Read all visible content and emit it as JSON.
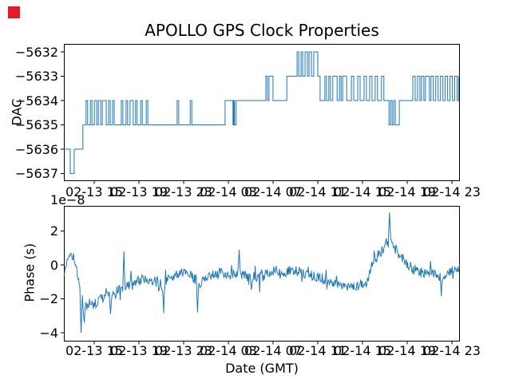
{
  "window": {
    "marker_color": "#e11d25"
  },
  "figure": {
    "title": "APOLLO GPS Clock Properties",
    "xlabel": "Date (GMT)",
    "background": "#ffffff",
    "line_color": "#1f77b4",
    "top_ylabel": "DAC",
    "bottom_ylabel": "Phase (s)",
    "offset_text": "1e−8"
  },
  "chart_data": [
    {
      "type": "line",
      "style": "step-post",
      "title": "APOLLO GPS Clock Properties",
      "ylabel": "DAC",
      "xlabel": "",
      "legend": "none",
      "grid": false,
      "ylim": [
        -5637.3,
        -5631.7
      ],
      "y_tick_values": [
        -5632,
        -5633,
        -5634,
        -5635,
        -5636,
        -5637
      ],
      "y_tick_labels": [
        "−5632",
        "−5633",
        "−5634",
        "−5635",
        "−5636",
        "−5637"
      ],
      "x_tick_labels": [
        "02-13 15",
        "02-13 19",
        "02-13 23",
        "02-14 03",
        "02-14 07",
        "02-14 11",
        "02-14 15",
        "02-14 19",
        "02-14 23"
      ],
      "steps_x_is_fraction_of_axis": true,
      "steps": [
        [
          0.0,
          -5636
        ],
        [
          0.016,
          -5637
        ],
        [
          0.026,
          -5636
        ],
        [
          0.048,
          -5635
        ],
        [
          0.056,
          -5634
        ],
        [
          0.06,
          -5635
        ],
        [
          0.067,
          -5634
        ],
        [
          0.071,
          -5635
        ],
        [
          0.077,
          -5634
        ],
        [
          0.083,
          -5635
        ],
        [
          0.087,
          -5634
        ],
        [
          0.093,
          -5635
        ],
        [
          0.097,
          -5634
        ],
        [
          0.107,
          -5635
        ],
        [
          0.113,
          -5634
        ],
        [
          0.117,
          -5635
        ],
        [
          0.123,
          -5634
        ],
        [
          0.127,
          -5635
        ],
        [
          0.145,
          -5634
        ],
        [
          0.149,
          -5635
        ],
        [
          0.157,
          -5634
        ],
        [
          0.161,
          -5635
        ],
        [
          0.167,
          -5634
        ],
        [
          0.175,
          -5635
        ],
        [
          0.181,
          -5634
        ],
        [
          0.185,
          -5635
        ],
        [
          0.194,
          -5634
        ],
        [
          0.198,
          -5635
        ],
        [
          0.208,
          -5634
        ],
        [
          0.212,
          -5635
        ],
        [
          0.286,
          -5634
        ],
        [
          0.29,
          -5635
        ],
        [
          0.319,
          -5634
        ],
        [
          0.323,
          -5635
        ],
        [
          0.407,
          -5634
        ],
        [
          0.427,
          -5635
        ],
        [
          0.429,
          -5634
        ],
        [
          0.431,
          -5635
        ],
        [
          0.435,
          -5634
        ],
        [
          0.51,
          -5633
        ],
        [
          0.514,
          -5634
        ],
        [
          0.518,
          -5633
        ],
        [
          0.528,
          -5634
        ],
        [
          0.563,
          -5633
        ],
        [
          0.589,
          -5632
        ],
        [
          0.593,
          -5633
        ],
        [
          0.599,
          -5632
        ],
        [
          0.603,
          -5633
        ],
        [
          0.609,
          -5632
        ],
        [
          0.615,
          -5633
        ],
        [
          0.619,
          -5632
        ],
        [
          0.625,
          -5633
        ],
        [
          0.631,
          -5632
        ],
        [
          0.641,
          -5633
        ],
        [
          0.647,
          -5634
        ],
        [
          0.659,
          -5633
        ],
        [
          0.663,
          -5634
        ],
        [
          0.669,
          -5633
        ],
        [
          0.673,
          -5634
        ],
        [
          0.679,
          -5633
        ],
        [
          0.69,
          -5634
        ],
        [
          0.696,
          -5633
        ],
        [
          0.7,
          -5634
        ],
        [
          0.704,
          -5633
        ],
        [
          0.714,
          -5634
        ],
        [
          0.726,
          -5633
        ],
        [
          0.732,
          -5634
        ],
        [
          0.742,
          -5633
        ],
        [
          0.748,
          -5634
        ],
        [
          0.758,
          -5633
        ],
        [
          0.764,
          -5634
        ],
        [
          0.772,
          -5633
        ],
        [
          0.778,
          -5634
        ],
        [
          0.786,
          -5633
        ],
        [
          0.792,
          -5634
        ],
        [
          0.802,
          -5633
        ],
        [
          0.808,
          -5634
        ],
        [
          0.821,
          -5635
        ],
        [
          0.825,
          -5634
        ],
        [
          0.829,
          -5635
        ],
        [
          0.833,
          -5634
        ],
        [
          0.837,
          -5635
        ],
        [
          0.847,
          -5634
        ],
        [
          0.881,
          -5633
        ],
        [
          0.887,
          -5634
        ],
        [
          0.893,
          -5633
        ],
        [
          0.899,
          -5634
        ],
        [
          0.903,
          -5633
        ],
        [
          0.909,
          -5634
        ],
        [
          0.913,
          -5633
        ],
        [
          0.923,
          -5634
        ],
        [
          0.927,
          -5633
        ],
        [
          0.933,
          -5634
        ],
        [
          0.939,
          -5633
        ],
        [
          0.945,
          -5634
        ],
        [
          0.951,
          -5633
        ],
        [
          0.957,
          -5634
        ],
        [
          0.963,
          -5633
        ],
        [
          0.969,
          -5634
        ],
        [
          0.975,
          -5633
        ],
        [
          0.981,
          -5634
        ],
        [
          0.987,
          -5633
        ],
        [
          0.993,
          -5634
        ],
        [
          0.997,
          -5633
        ]
      ]
    },
    {
      "type": "line",
      "style": "noisy",
      "ylabel": "Phase (s)",
      "xlabel": "Date (GMT)",
      "y_offset_text": "1e−8",
      "legend": "none",
      "grid": false,
      "ylim": [
        -4.4,
        3.5
      ],
      "y_tick_values": [
        2,
        0,
        -2,
        -4
      ],
      "y_tick_labels": [
        "2",
        "0",
        "−2",
        "−4"
      ],
      "x_tick_labels": [
        "02-13 15",
        "02-13 19",
        "02-13 23",
        "02-14 03",
        "02-14 07",
        "02-14 11",
        "02-14 15",
        "02-14 19",
        "02-14 23"
      ],
      "noise": {
        "seed": 9,
        "n": 620,
        "clamp": [
          -4.3,
          3.4
        ],
        "anchors": [
          [
            0.0,
            -0.55,
            0.25
          ],
          [
            0.01,
            0.45,
            0.35
          ],
          [
            0.02,
            0.55,
            0.35
          ],
          [
            0.03,
            0.05,
            0.25
          ],
          [
            0.04,
            -1.4,
            0.6
          ],
          [
            0.05,
            -2.45,
            0.55
          ],
          [
            0.075,
            -2.3,
            0.5
          ],
          [
            0.1,
            -1.95,
            0.5
          ],
          [
            0.13,
            -1.55,
            0.45
          ],
          [
            0.16,
            -1.25,
            0.45
          ],
          [
            0.19,
            -0.85,
            0.5
          ],
          [
            0.22,
            -0.95,
            0.5
          ],
          [
            0.25,
            -1.3,
            0.7
          ],
          [
            0.265,
            -0.8,
            0.45
          ],
          [
            0.295,
            -0.45,
            0.4
          ],
          [
            0.32,
            -0.6,
            0.45
          ],
          [
            0.34,
            -1.1,
            0.6
          ],
          [
            0.365,
            -0.7,
            0.45
          ],
          [
            0.39,
            -0.45,
            0.45
          ],
          [
            0.42,
            -0.65,
            0.5
          ],
          [
            0.445,
            -0.45,
            0.5
          ],
          [
            0.47,
            -0.9,
            0.55
          ],
          [
            0.5,
            -0.7,
            0.5
          ],
          [
            0.53,
            -0.35,
            0.45
          ],
          [
            0.56,
            -0.4,
            0.5
          ],
          [
            0.59,
            -0.3,
            0.5
          ],
          [
            0.62,
            -0.6,
            0.55
          ],
          [
            0.65,
            -0.8,
            0.5
          ],
          [
            0.68,
            -1.1,
            0.45
          ],
          [
            0.71,
            -1.3,
            0.4
          ],
          [
            0.745,
            -1.25,
            0.4
          ],
          [
            0.765,
            -1.1,
            0.45
          ],
          [
            0.778,
            0.1,
            0.5
          ],
          [
            0.795,
            0.6,
            0.55
          ],
          [
            0.812,
            1.1,
            0.65
          ],
          [
            0.822,
            1.6,
            0.8
          ],
          [
            0.832,
            1.05,
            0.6
          ],
          [
            0.85,
            0.45,
            0.55
          ],
          [
            0.875,
            -0.1,
            0.5
          ],
          [
            0.9,
            -0.45,
            0.5
          ],
          [
            0.93,
            -0.5,
            0.5
          ],
          [
            0.95,
            -0.75,
            0.55
          ],
          [
            0.97,
            -0.4,
            0.45
          ],
          [
            1.0,
            -0.15,
            0.35
          ]
        ],
        "spikes": [
          [
            0.043,
            -4.0
          ],
          [
            0.052,
            -3.4
          ],
          [
            0.118,
            -2.9
          ],
          [
            0.152,
            0.8
          ],
          [
            0.252,
            -2.85
          ],
          [
            0.337,
            -2.8
          ],
          [
            0.443,
            0.9
          ],
          [
            0.822,
            3.1
          ],
          [
            0.953,
            -1.85
          ]
        ]
      }
    }
  ]
}
